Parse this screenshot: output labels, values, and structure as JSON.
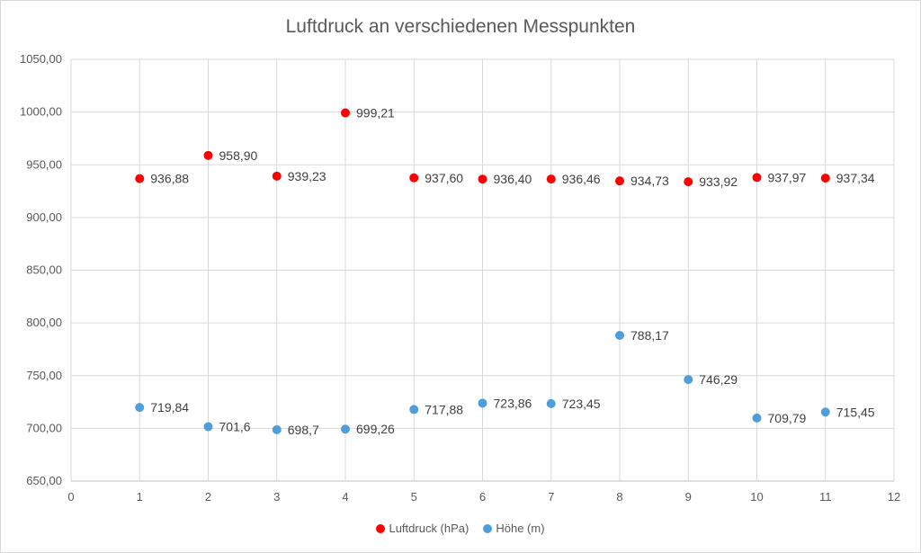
{
  "chart_data": {
    "type": "scatter",
    "title": "Luftdruck an verschiedenen Messpunkten",
    "xlabel": "",
    "ylabel": "",
    "xlim": [
      0,
      12
    ],
    "ylim": [
      650,
      1050
    ],
    "x_ticks": [
      0,
      1,
      2,
      3,
      4,
      5,
      6,
      7,
      8,
      9,
      10,
      11,
      12
    ],
    "y_ticks": [
      "650,00",
      "700,00",
      "750,00",
      "800,00",
      "850,00",
      "900,00",
      "950,00",
      "1000,00",
      "1050,00"
    ],
    "y_tick_values": [
      650,
      700,
      750,
      800,
      850,
      900,
      950,
      1000,
      1050
    ],
    "grid": true,
    "legend_position": "bottom",
    "series": [
      {
        "name": "Luftdruck (hPa)",
        "color": "#ff0000",
        "x": [
          1,
          2,
          3,
          4,
          5,
          6,
          7,
          8,
          9,
          10,
          11
        ],
        "y": [
          936.88,
          958.9,
          939.23,
          999.21,
          937.6,
          936.4,
          936.46,
          934.73,
          933.92,
          937.97,
          937.34
        ],
        "labels": [
          "936,88",
          "958,90",
          "939,23",
          "999,21",
          "937,60",
          "936,40",
          "936,46",
          "934,73",
          "933,92",
          "937,97",
          "937,34"
        ]
      },
      {
        "name": "Höhe (m)",
        "color": "#4e9edb",
        "x": [
          1,
          2,
          3,
          4,
          5,
          6,
          7,
          8,
          9,
          10,
          11
        ],
        "y": [
          719.84,
          701.6,
          698.7,
          699.26,
          717.88,
          723.86,
          723.45,
          788.17,
          746.29,
          709.79,
          715.45
        ],
        "labels": [
          "719,84",
          "701,6",
          "698,7",
          "699,26",
          "717,88",
          "723,86",
          "723,45",
          "788,17",
          "746,29",
          "709,79",
          "715,45"
        ]
      }
    ]
  }
}
